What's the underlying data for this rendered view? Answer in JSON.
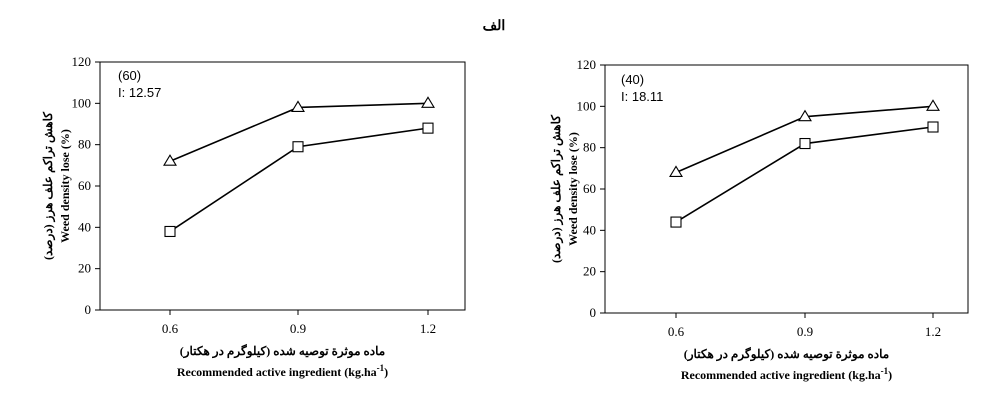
{
  "figure": {
    "heading": "الف"
  },
  "chart_data": [
    {
      "type": "line",
      "inset_label": "(60)",
      "inset_value": "I: 12.57",
      "title": "",
      "xlabel_fa": "ماده موثرة توصيه شده (کيلوگرم در هکتار)",
      "xlabel_en": "Recommended active ingredient (kg.ha",
      "xlabel_sup": "-1",
      "xlabel_close": ")",
      "ylabel_fa": "کاهش تراکم علف هرز (درصد)",
      "ylabel_en": "Weed density lose (%)",
      "x": [
        0.6,
        0.9,
        1.2
      ],
      "xtick_labels": [
        "0.6",
        "0.9",
        "1.2"
      ],
      "ylim": [
        0,
        120
      ],
      "yticks": [
        0,
        20,
        40,
        60,
        80,
        100,
        120
      ],
      "series": [
        {
          "marker": "triangle",
          "values": [
            72,
            98,
            100
          ]
        },
        {
          "marker": "square",
          "values": [
            38,
            79,
            88
          ]
        }
      ]
    },
    {
      "type": "line",
      "inset_label": "(40)",
      "inset_value": "I: 18.11",
      "title": "",
      "xlabel_fa": "ماده موثرة توصيه شده (کيلوگرم در هکتار)",
      "xlabel_en": "Recommended active ingredient (kg.ha",
      "xlabel_sup": "-1",
      "xlabel_close": ")",
      "ylabel_fa": "کاهش تراکم علف هرز (درصد)",
      "ylabel_en": "Weed density lose (%)",
      "x": [
        0.6,
        0.9,
        1.2
      ],
      "xtick_labels": [
        "0.6",
        "0.9",
        "1.2"
      ],
      "ylim": [
        0,
        120
      ],
      "yticks": [
        0,
        20,
        40,
        60,
        80,
        100,
        120
      ],
      "series": [
        {
          "marker": "triangle",
          "values": [
            68,
            95,
            100
          ]
        },
        {
          "marker": "square",
          "values": [
            44,
            82,
            90
          ]
        }
      ]
    }
  ]
}
